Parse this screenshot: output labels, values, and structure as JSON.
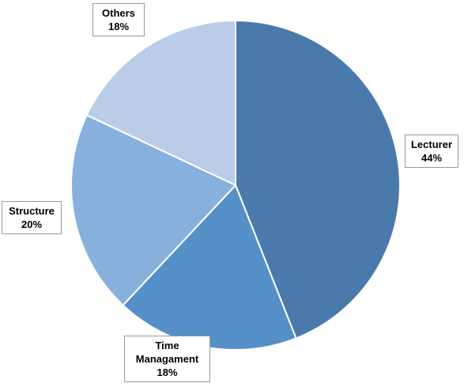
{
  "chart_data": {
    "type": "pie",
    "categories": [
      "Lecturer",
      "Time Managament",
      "Structure",
      "Others"
    ],
    "values": [
      44,
      18,
      20,
      18
    ],
    "value_labels": [
      "44%",
      "18%",
      "20%",
      "18%"
    ],
    "colors": [
      "#4a7aab",
      "#5590c8",
      "#88b0dc",
      "#b9cce8"
    ]
  }
}
